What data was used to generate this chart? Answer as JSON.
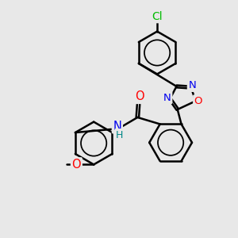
{
  "background_color": "#e8e8e8",
  "bond_color": "#000000",
  "atom_colors": {
    "Cl": "#00bb00",
    "O": "#ff0000",
    "N": "#0000ee",
    "H": "#008888",
    "C": "#000000"
  },
  "bond_width": 1.8,
  "figsize": [
    3.0,
    3.0
  ],
  "dpi": 100,
  "xlim": [
    -1.5,
    8.5
  ],
  "ylim": [
    -1.0,
    9.5
  ]
}
